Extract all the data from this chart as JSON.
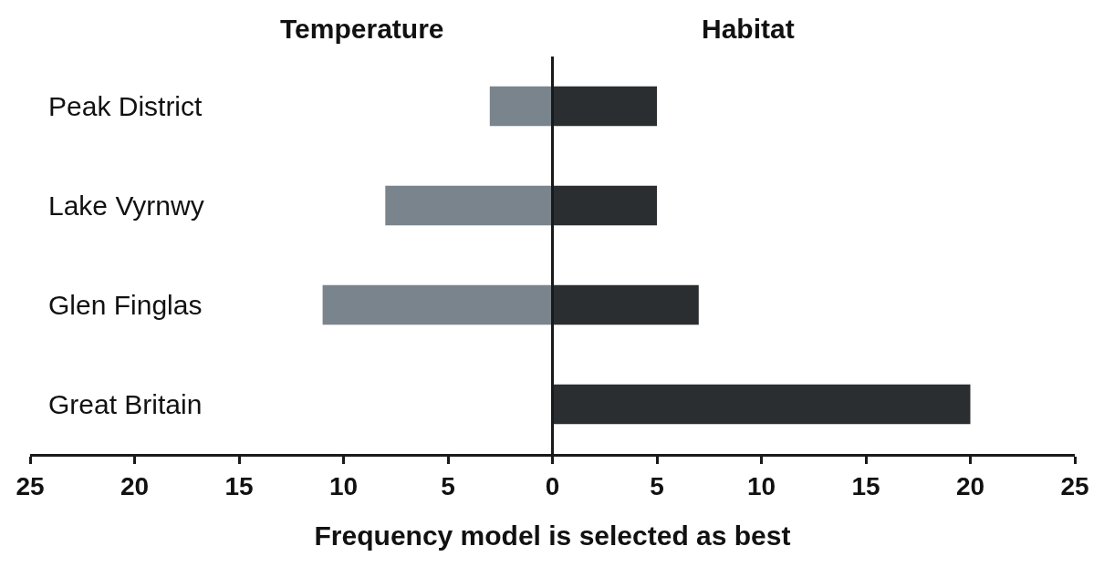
{
  "chart_data": {
    "type": "bar",
    "orientation": "horizontal",
    "xlabel": "Frequency model is selected as best",
    "categories": [
      "Peak District",
      "Lake Vyrnwy",
      "Glen Finglas",
      "Great Britain"
    ],
    "series": [
      {
        "name": "Temperature",
        "color": "#7a848c",
        "values": [
          -3,
          -8,
          -11,
          0
        ]
      },
      {
        "name": "Habitat",
        "color": "#2a2e31",
        "values": [
          5,
          5,
          7,
          20
        ]
      }
    ],
    "xlim": [
      -25,
      25
    ],
    "xticks": [
      {
        "value": -25,
        "label": "25"
      },
      {
        "value": -20,
        "label": "20"
      },
      {
        "value": -15,
        "label": "15"
      },
      {
        "value": -10,
        "label": "10"
      },
      {
        "value": -5,
        "label": "5"
      },
      0,
      5,
      10,
      15,
      20,
      25
    ],
    "ref_lines": [
      {
        "axis": "x",
        "value": 0,
        "color": "#1a1a1a"
      }
    ],
    "stacked": true,
    "grid": false,
    "legend": false
  }
}
